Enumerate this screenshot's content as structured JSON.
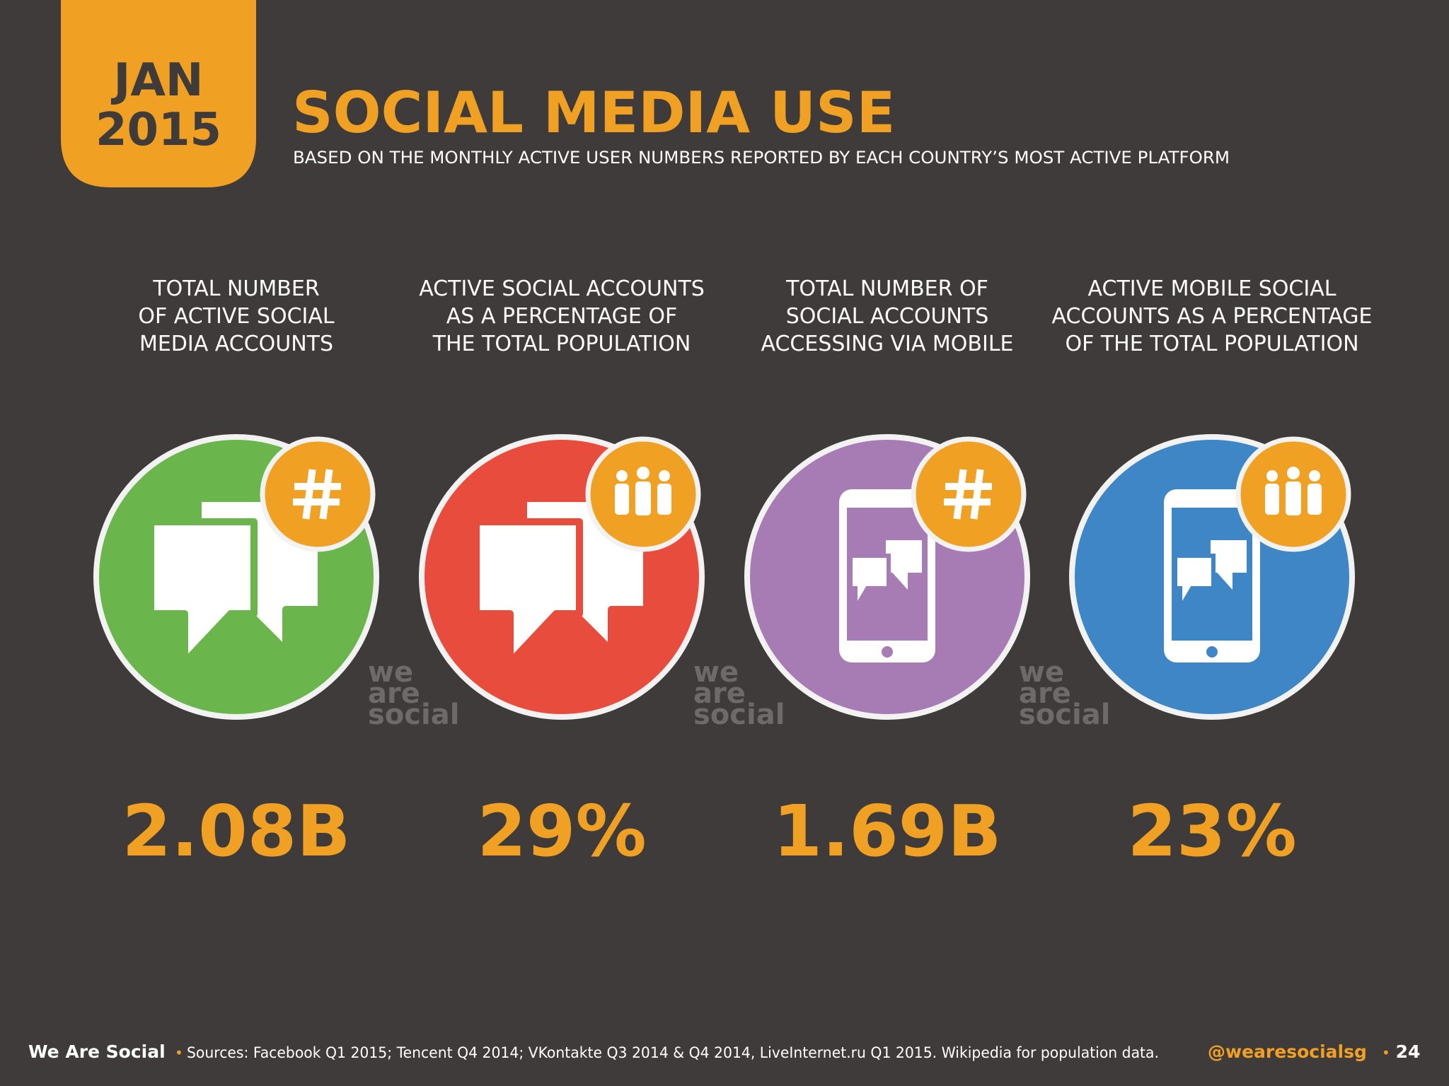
{
  "badge": {
    "month": "JAN",
    "year": "2015"
  },
  "header": {
    "title": "SOCIAL MEDIA USE",
    "subtitle": "BASED ON THE MONTHLY ACTIVE USER NUMBERS REPORTED BY EACH COUNTRY’S MOST ACTIVE PLATFORM"
  },
  "stats": [
    {
      "label_lines": [
        "TOTAL NUMBER",
        "OF ACTIVE SOCIAL",
        "MEDIA ACCOUNTS"
      ],
      "value": "2.08B"
    },
    {
      "label_lines": [
        "ACTIVE SOCIAL ACCOUNTS",
        "AS A PERCENTAGE OF",
        "THE TOTAL POPULATION"
      ],
      "value": "29%"
    },
    {
      "label_lines": [
        "TOTAL NUMBER OF",
        "SOCIAL ACCOUNTS",
        "ACCESSING VIA MOBILE"
      ],
      "value": "1.69B"
    },
    {
      "label_lines": [
        "ACTIVE MOBILE SOCIAL",
        "ACCOUNTS AS A PERCENTAGE",
        "OF THE TOTAL POPULATION"
      ],
      "value": "23%"
    }
  ],
  "watermark": [
    "we",
    "are",
    "social"
  ],
  "footer": {
    "brand": "We Are Social",
    "separator": "•",
    "sources": "Sources: Facebook Q1 2015; Tencent Q4 2014; VKontakte Q3 2014 & Q4 2014, LiveInternet.ru Q1 2015. Wikipedia for population data.",
    "handle": "@wearesocialsg",
    "page": "24"
  }
}
